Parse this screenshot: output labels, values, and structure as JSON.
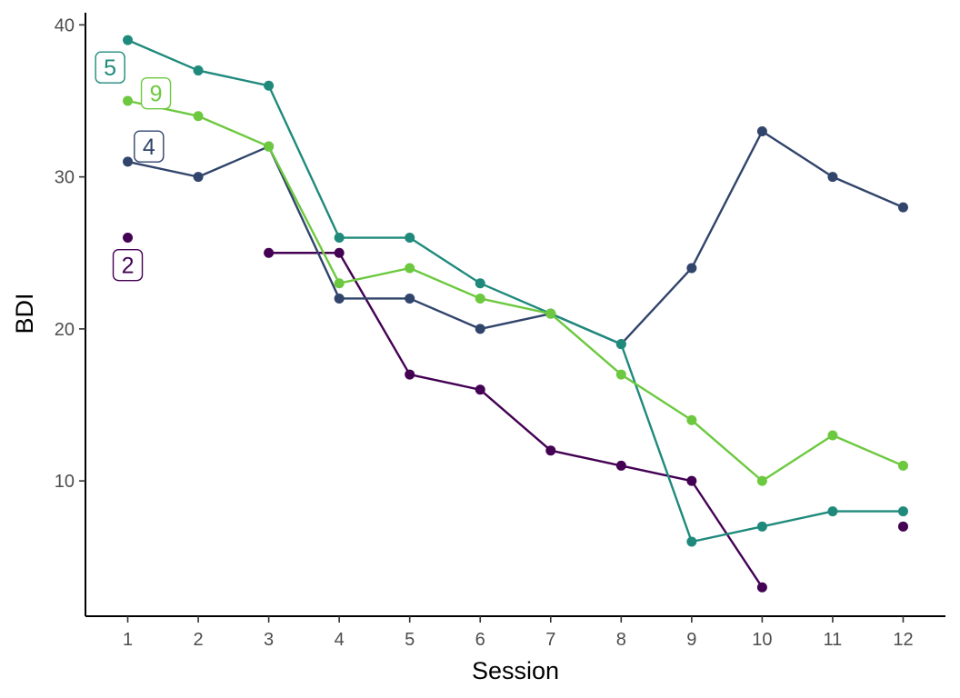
{
  "chart_data": {
    "type": "line",
    "title": "",
    "xlabel": "Session",
    "ylabel": "BDI",
    "xlim": [
      0.4,
      12.6
    ],
    "ylim": [
      1.1,
      40.8
    ],
    "x_ticks": [
      1,
      2,
      3,
      4,
      5,
      6,
      7,
      8,
      9,
      10,
      11,
      12
    ],
    "y_ticks": [
      10,
      20,
      30,
      40
    ],
    "grid": false,
    "legend": "none",
    "series": [
      {
        "name": "2",
        "color": "#440154",
        "x": [
          1,
          2,
          3,
          4,
          5,
          6,
          7,
          8,
          9,
          10,
          11,
          12
        ],
        "y": [
          26,
          null,
          25,
          25,
          17,
          16,
          12,
          11,
          10,
          3,
          null,
          7
        ],
        "label_at": [
          1,
          24.2
        ]
      },
      {
        "name": "4",
        "color": "#31446b",
        "x": [
          1,
          2,
          3,
          4,
          5,
          6,
          7,
          8,
          9,
          10,
          11,
          12
        ],
        "y": [
          31,
          30,
          32,
          22,
          22,
          20,
          21,
          19,
          24,
          33,
          30,
          28
        ],
        "label_at": [
          1.3,
          32
        ]
      },
      {
        "name": "5",
        "color": "#1f8a7c",
        "x": [
          1,
          2,
          3,
          4,
          5,
          6,
          7,
          8,
          9,
          10,
          11,
          12
        ],
        "y": [
          39,
          37,
          36,
          26,
          26,
          23,
          21,
          19,
          6,
          7,
          8,
          8
        ],
        "label_at": [
          0.75,
          37.2
        ]
      },
      {
        "name": "9",
        "color": "#6cc93f",
        "x": [
          1,
          2,
          3,
          4,
          5,
          6,
          7,
          8,
          9,
          10,
          11,
          12
        ],
        "y": [
          35,
          34,
          32,
          23,
          24,
          22,
          21,
          17,
          14,
          10,
          13,
          11
        ],
        "label_at": [
          1.4,
          35.5
        ]
      }
    ]
  }
}
